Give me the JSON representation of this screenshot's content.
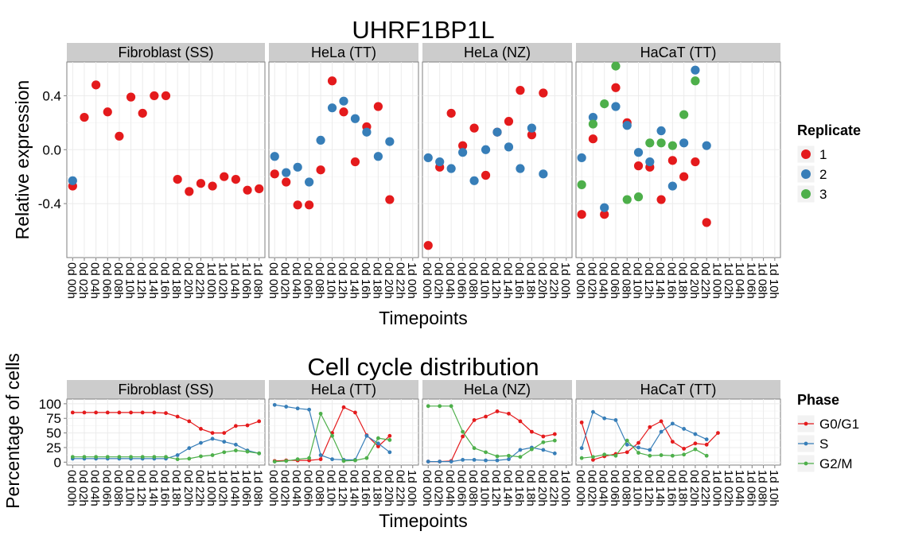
{
  "chart_data": [
    {
      "type": "scatter",
      "title": "UHRF1BP1L",
      "xlabel": "Timepoints",
      "ylabel": "Relative expression",
      "ylim": [
        -0.8,
        0.65
      ],
      "y_ticks": [
        "-0.4",
        "0.0",
        "0.4"
      ],
      "grid": true,
      "legend": {
        "title": "Replicate",
        "placement": "right",
        "entries": [
          "1",
          "2",
          "3"
        ]
      },
      "colors": {
        "1": "#e41a1c",
        "2": "#377eb8",
        "3": "#4daf4a"
      },
      "panels": [
        {
          "title": "Fibroblast (SS)",
          "categories": [
            "0d 00h",
            "0d 02h",
            "0d 04h",
            "0d 06h",
            "0d 08h",
            "0d 10h",
            "0d 12h",
            "0d 14h",
            "0d 16h",
            "0d 18h",
            "0d 20h",
            "0d 22h",
            "1d 00h",
            "1d 02h",
            "1d 04h",
            "1d 06h",
            "1d 08h"
          ],
          "series": [
            {
              "name": "1",
              "values": [
                -0.27,
                0.24,
                0.48,
                0.28,
                0.1,
                0.39,
                0.27,
                0.4,
                0.4,
                -0.22,
                -0.31,
                -0.25,
                -0.27,
                -0.2,
                -0.22,
                -0.3,
                -0.29
              ]
            },
            {
              "name": "2",
              "values": [
                -0.23,
                null,
                null,
                null,
                null,
                null,
                null,
                null,
                null,
                null,
                null,
                null,
                null,
                null,
                null,
                null,
                null
              ]
            }
          ]
        },
        {
          "title": "HeLa (TT)",
          "categories": [
            "0d 00h",
            "0d 02h",
            "0d 04h",
            "0d 06h",
            "0d 08h",
            "0d 10h",
            "0d 12h",
            "0d 14h",
            "0d 16h",
            "0d 18h",
            "0d 20h",
            "0d 22h",
            "1d 00h"
          ],
          "series": [
            {
              "name": "1",
              "values": [
                -0.18,
                -0.24,
                -0.41,
                -0.41,
                -0.15,
                0.51,
                0.28,
                -0.09,
                0.17,
                0.32,
                -0.37,
                null,
                null
              ]
            },
            {
              "name": "2",
              "values": [
                -0.05,
                -0.17,
                -0.13,
                -0.24,
                0.07,
                0.31,
                0.36,
                0.23,
                0.13,
                -0.05,
                0.06,
                null,
                null
              ]
            }
          ]
        },
        {
          "title": "HeLa (NZ)",
          "categories": [
            "0d 00h",
            "0d 02h",
            "0d 04h",
            "0d 06h",
            "0d 08h",
            "0d 10h",
            "0d 12h",
            "0d 14h",
            "0d 16h",
            "0d 18h",
            "0d 20h",
            "0d 22h",
            "1d 00h"
          ],
          "series": [
            {
              "name": "1",
              "values": [
                -0.71,
                -0.13,
                0.27,
                0.03,
                0.16,
                -0.19,
                0.13,
                0.21,
                0.44,
                0.11,
                0.42,
                null,
                null
              ]
            },
            {
              "name": "2",
              "values": [
                -0.06,
                -0.09,
                -0.14,
                -0.02,
                -0.23,
                0.0,
                0.13,
                0.02,
                -0.14,
                0.16,
                -0.18,
                null,
                null
              ]
            }
          ]
        },
        {
          "title": "HaCaT (TT)",
          "categories": [
            "0d 00h",
            "0d 02h",
            "0d 04h",
            "0d 06h",
            "0d 08h",
            "0d 10h",
            "0d 12h",
            "0d 14h",
            "0d 16h",
            "0d 18h",
            "0d 20h",
            "0d 22h",
            "1d 00h",
            "1d 02h",
            "1d 04h",
            "1d 06h",
            "1d 08h",
            "1d 10h"
          ],
          "series": [
            {
              "name": "1",
              "values": [
                -0.48,
                0.08,
                -0.48,
                0.46,
                0.2,
                -0.12,
                -0.13,
                -0.37,
                -0.08,
                -0.2,
                -0.09,
                -0.54,
                null,
                null,
                null,
                null,
                null,
                null
              ]
            },
            {
              "name": "2",
              "values": [
                -0.06,
                0.24,
                -0.43,
                0.32,
                0.18,
                -0.02,
                -0.09,
                0.14,
                -0.27,
                0.05,
                0.59,
                0.03,
                null,
                null,
                null,
                null,
                null,
                null
              ]
            },
            {
              "name": "3",
              "values": [
                -0.26,
                0.19,
                0.34,
                0.62,
                -0.37,
                -0.35,
                0.05,
                0.05,
                0.03,
                0.26,
                0.51,
                null,
                null,
                null,
                null,
                null,
                null,
                null
              ]
            }
          ]
        }
      ]
    },
    {
      "type": "line",
      "title": "Cell cycle distribution",
      "xlabel": "Timepoints",
      "ylabel": "Percentage of cells",
      "ylim": [
        -5,
        108
      ],
      "y_ticks": [
        "0",
        "25",
        "50",
        "75",
        "100"
      ],
      "grid": true,
      "legend": {
        "title": "Phase",
        "placement": "right",
        "entries": [
          "G0/G1",
          "S",
          "G2/M"
        ]
      },
      "colors": {
        "G0/G1": "#e41a1c",
        "S": "#377eb8",
        "G2/M": "#4daf4a"
      },
      "panels": [
        {
          "title": "Fibroblast (SS)",
          "categories": [
            "0d 00h",
            "0d 02h",
            "0d 04h",
            "0d 06h",
            "0d 08h",
            "0d 10h",
            "0d 12h",
            "0d 14h",
            "0d 16h",
            "0d 18h",
            "0d 20h",
            "0d 22h",
            "1d 00h",
            "1d 02h",
            "1d 04h",
            "1d 06h",
            "1d 08h"
          ],
          "series": [
            {
              "name": "G0/G1",
              "values": [
                85,
                85,
                85,
                85,
                85,
                85,
                85,
                85,
                84,
                78,
                70,
                57,
                50,
                50,
                62,
                63,
                70
              ]
            },
            {
              "name": "S",
              "values": [
                6,
                6,
                6,
                6,
                6,
                6,
                6,
                6,
                6,
                12,
                24,
                33,
                40,
                35,
                30,
                20,
                15
              ]
            },
            {
              "name": "G2/M",
              "values": [
                9,
                9,
                9,
                9,
                9,
                9,
                9,
                9,
                9,
                5,
                6,
                10,
                12,
                17,
                20,
                18,
                15
              ]
            }
          ]
        },
        {
          "title": "HeLa (TT)",
          "categories": [
            "0d 00h",
            "0d 02h",
            "0d 04h",
            "0d 06h",
            "0d 08h",
            "0d 10h",
            "0d 12h",
            "0d 14h",
            "0d 16h",
            "0d 18h",
            "0d 20h",
            "0d 22h",
            "1d 00h"
          ],
          "series": [
            {
              "name": "G0/G1",
              "values": [
                2,
                3,
                3,
                3,
                5,
                50,
                94,
                85,
                46,
                27,
                45,
                null,
                null
              ]
            },
            {
              "name": "S",
              "values": [
                98,
                95,
                92,
                90,
                12,
                5,
                4,
                4,
                45,
                32,
                17,
                null,
                null
              ]
            },
            {
              "name": "G2/M",
              "values": [
                1,
                2,
                5,
                7,
                83,
                45,
                2,
                3,
                7,
                41,
                38,
                null,
                null
              ]
            }
          ]
        },
        {
          "title": "HeLa (NZ)",
          "categories": [
            "0d 00h",
            "0d 02h",
            "0d 04h",
            "0d 06h",
            "0d 08h",
            "0d 10h",
            "0d 12h",
            "0d 14h",
            "0d 16h",
            "0d 18h",
            "0d 20h",
            "0d 22h",
            "1d 00h"
          ],
          "series": [
            {
              "name": "G0/G1",
              "values": [
                1,
                1,
                2,
                44,
                72,
                78,
                87,
                83,
                70,
                52,
                44,
                48,
                null
              ]
            },
            {
              "name": "S",
              "values": [
                1,
                1,
                1,
                4,
                4,
                3,
                3,
                5,
                21,
                25,
                21,
                15,
                null
              ]
            },
            {
              "name": "G2/M",
              "values": [
                96,
                96,
                96,
                52,
                24,
                17,
                10,
                11,
                9,
                22,
                34,
                37,
                null
              ]
            }
          ]
        },
        {
          "title": "HaCaT (TT)",
          "categories": [
            "0d 00h",
            "0d 02h",
            "0d 04h",
            "0d 06h",
            "0d 08h",
            "0d 10h",
            "0d 12h",
            "0d 14h",
            "0d 16h",
            "0d 18h",
            "0d 20h",
            "0d 22h",
            "1d 00h",
            "1d 02h",
            "1d 04h",
            "1d 06h",
            "1d 08h",
            "1d 10h"
          ],
          "series": [
            {
              "name": "G0/G1",
              "values": [
                68,
                4,
                10,
                14,
                17,
                33,
                60,
                70,
                35,
                23,
                32,
                30,
                50,
                null,
                null,
                null,
                null,
                null
              ]
            },
            {
              "name": "S",
              "values": [
                24,
                86,
                75,
                72,
                30,
                25,
                21,
                52,
                66,
                57,
                48,
                39,
                null,
                null,
                null,
                null,
                null,
                null
              ]
            },
            {
              "name": "G2/M",
              "values": [
                7,
                9,
                13,
                11,
                37,
                16,
                11,
                12,
                11,
                13,
                22,
                11,
                null,
                null,
                null,
                null,
                null,
                null
              ]
            }
          ]
        }
      ]
    }
  ]
}
